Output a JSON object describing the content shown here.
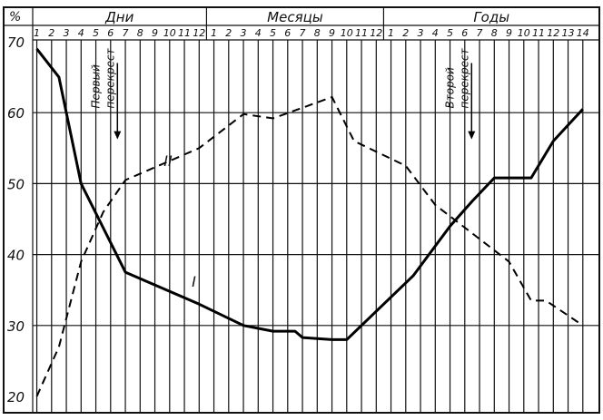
{
  "chart_data": {
    "type": "line",
    "ylabel": "%",
    "ylim": [
      20,
      70
    ],
    "yticks": [
      70,
      60,
      50,
      40,
      30,
      20
    ],
    "grid": true,
    "sections": [
      {
        "label": "Дни",
        "ticks": [
          "1",
          "2",
          "3",
          "4",
          "5",
          "6",
          "7",
          "8",
          "9",
          "10",
          "11",
          "12"
        ]
      },
      {
        "label": "Месяцы",
        "ticks": [
          "1",
          "2",
          "3",
          "4",
          "5",
          "6",
          "7",
          "8",
          "9",
          "10",
          "11",
          "12"
        ]
      },
      {
        "label": "Годы",
        "ticks": [
          "1",
          "2",
          "3",
          "4",
          "5",
          "6",
          "7",
          "8",
          "9",
          "10",
          "11",
          "12",
          "13",
          "14"
        ]
      }
    ],
    "series": [
      {
        "name": "I",
        "style": "solid",
        "points": [
          {
            "x": 0,
            "y": 69
          },
          {
            "x": 1.5,
            "y": 65
          },
          {
            "x": 3,
            "y": 50
          },
          {
            "x": 6,
            "y": 37.5
          },
          {
            "x": 11,
            "y": 33
          },
          {
            "x": 14,
            "y": 30
          },
          {
            "x": 16,
            "y": 29.2
          },
          {
            "x": 17.5,
            "y": 29.2
          },
          {
            "x": 18,
            "y": 28.3
          },
          {
            "x": 20,
            "y": 28
          },
          {
            "x": 21,
            "y": 28
          },
          {
            "x": 25.5,
            "y": 37
          },
          {
            "x": 28,
            "y": 44
          },
          {
            "x": 29.5,
            "y": 47.5
          },
          {
            "x": 31,
            "y": 50.8
          },
          {
            "x": 32.5,
            "y": 50.8
          },
          {
            "x": 33.5,
            "y": 50.8
          },
          {
            "x": 35,
            "y": 56
          },
          {
            "x": 37,
            "y": 60.5
          }
        ]
      },
      {
        "name": "II",
        "style": "dashed",
        "points": [
          {
            "x": 0,
            "y": 20
          },
          {
            "x": 1.5,
            "y": 27
          },
          {
            "x": 3,
            "y": 39
          },
          {
            "x": 4.5,
            "y": 46
          },
          {
            "x": 6,
            "y": 50.5
          },
          {
            "x": 11,
            "y": 55
          },
          {
            "x": 14,
            "y": 59.8
          },
          {
            "x": 16,
            "y": 59.2
          },
          {
            "x": 20,
            "y": 62.2
          },
          {
            "x": 21.5,
            "y": 56
          },
          {
            "x": 25,
            "y": 52.5
          },
          {
            "x": 27,
            "y": 47
          },
          {
            "x": 32,
            "y": 39
          },
          {
            "x": 33.5,
            "y": 33.5
          },
          {
            "x": 34.5,
            "y": 33.5
          },
          {
            "x": 37,
            "y": 30
          }
        ]
      }
    ],
    "annotations": [
      {
        "text": "Первый перекрест",
        "x": 4.6,
        "y": 44
      },
      {
        "text": "Второй перекрест",
        "x": 28.6,
        "y": 45
      }
    ]
  }
}
